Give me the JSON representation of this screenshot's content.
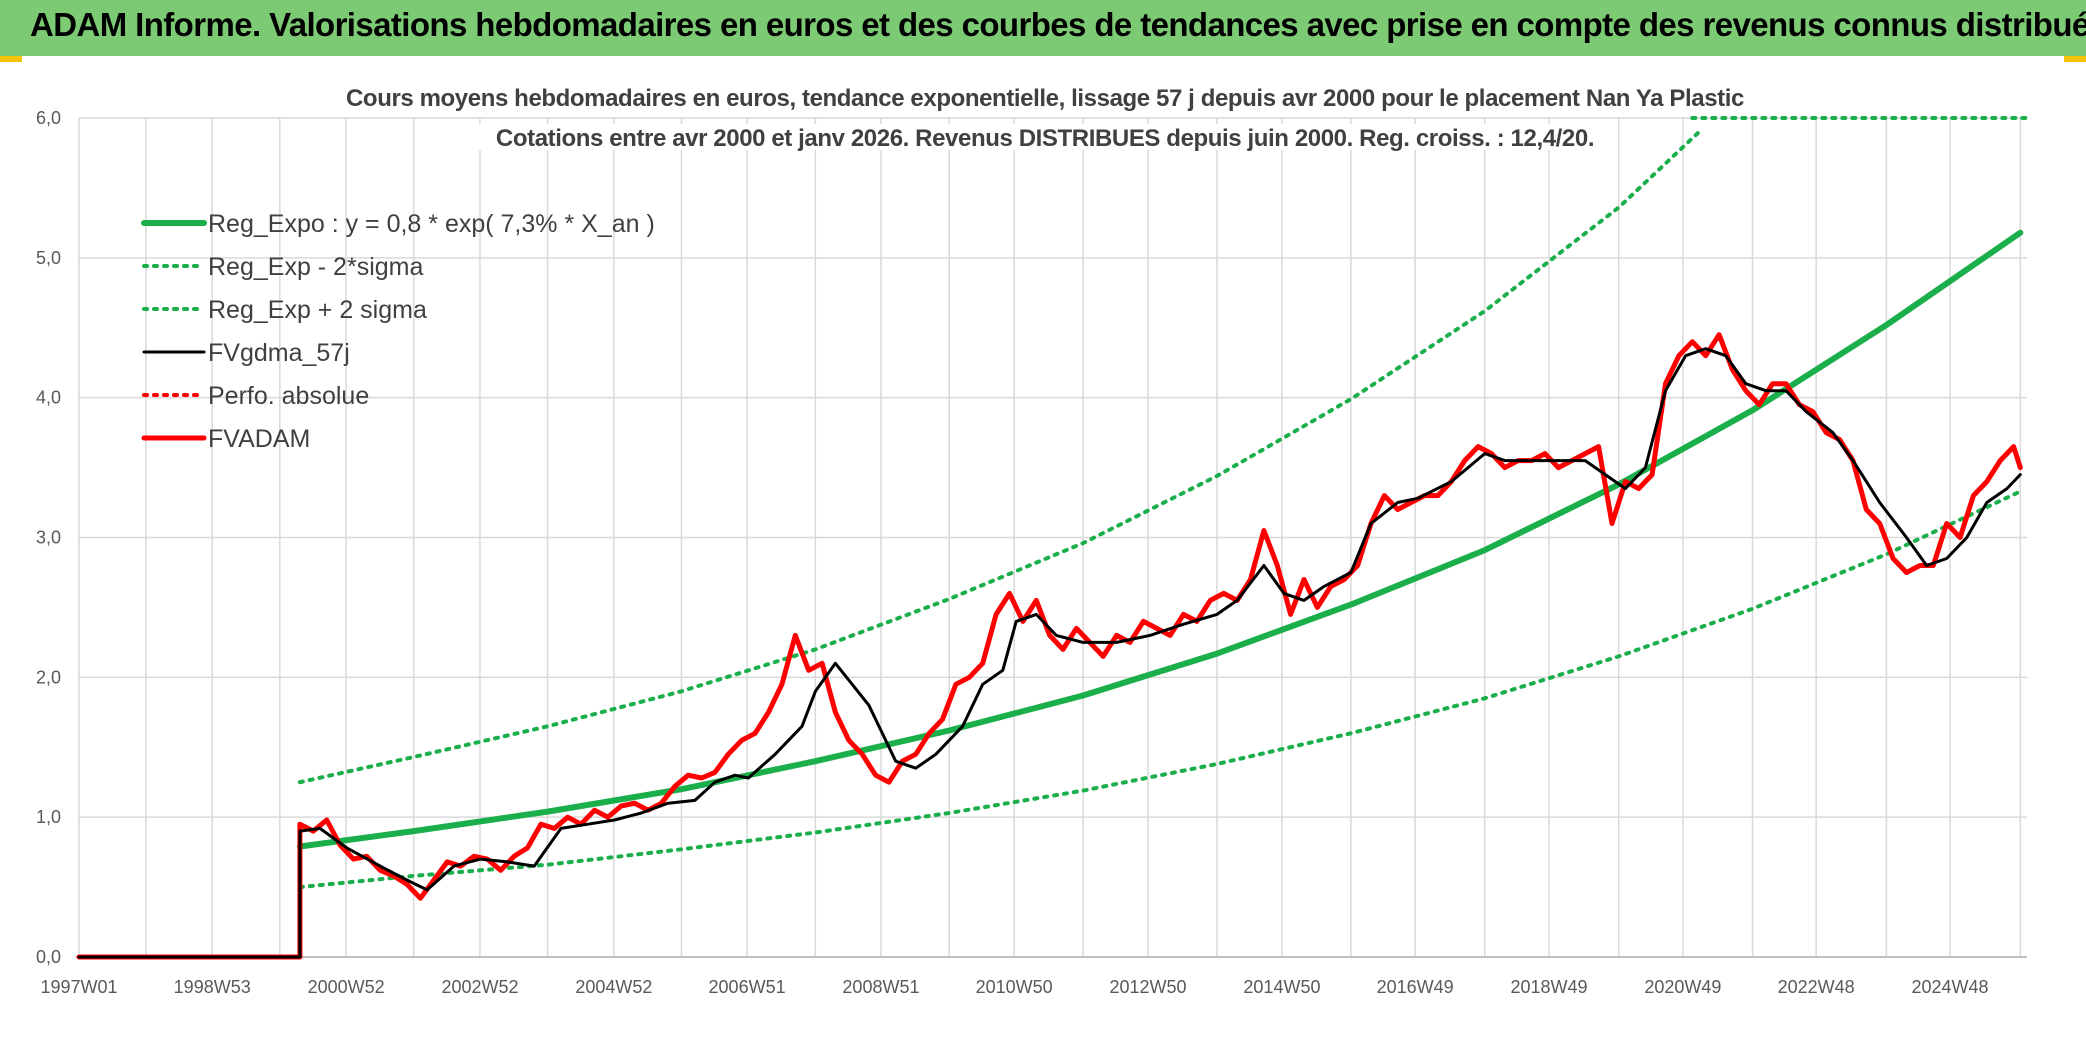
{
  "banner": {
    "title": "ADAM Informe. Valorisations hebdomadaires en euros et des courbes de tendances avec prise en compte des revenus connus distribués"
  },
  "colors": {
    "banner": "#7dca74",
    "regExpo": "#1aaf4b",
    "sigma": "#1aaf4b",
    "fvgdma": "#000000",
    "perfo": "#ff0000",
    "fvadam": "#ff0000",
    "grid": "#d9d9d9"
  },
  "chart_data": {
    "type": "line",
    "title_line1": "Cours moyens hebdomadaires en euros, tendance exponentielle, lissage 57 j depuis avr 2000 pour le placement Nan Ya Plastic",
    "title_line2": "Cotations entre avr 2000 et janv 2026. Revenus DISTRIBUES depuis juin 2000. Reg. croiss. : 12,4/20.",
    "xlabel": "",
    "ylabel": "",
    "xlim": [
      1997.0,
      2026.1
    ],
    "ylim": [
      0,
      6
    ],
    "y_ticks": [
      "0,0",
      "1,0",
      "2,0",
      "3,0",
      "4,0",
      "5,0",
      "6,0"
    ],
    "x_ticks": [
      {
        "x": 1997.0,
        "label": "1997W01"
      },
      {
        "x": 1998.99,
        "label": "1998W53"
      },
      {
        "x": 2000.99,
        "label": "2000W52"
      },
      {
        "x": 2002.99,
        "label": "2002W52"
      },
      {
        "x": 2004.99,
        "label": "2004W52"
      },
      {
        "x": 2006.98,
        "label": "2006W51"
      },
      {
        "x": 2008.98,
        "label": "2008W51"
      },
      {
        "x": 2010.97,
        "label": "2010W50"
      },
      {
        "x": 2012.97,
        "label": "2012W50"
      },
      {
        "x": 2014.97,
        "label": "2014W50"
      },
      {
        "x": 2016.96,
        "label": "2016W49"
      },
      {
        "x": 2018.96,
        "label": "2018W49"
      },
      {
        "x": 2020.96,
        "label": "2020W49"
      },
      {
        "x": 2022.95,
        "label": "2022W48"
      },
      {
        "x": 2024.95,
        "label": "2024W48"
      }
    ],
    "x_gridlines": [
      1997.0,
      1998.0,
      1998.99,
      2000.0,
      2000.99,
      2002.0,
      2002.99,
      2004.0,
      2004.99,
      2006.0,
      2006.98,
      2008.0,
      2008.98,
      2010.0,
      2010.97,
      2012.0,
      2012.97,
      2014.0,
      2014.97,
      2016.0,
      2016.96,
      2018.0,
      2018.96,
      2020.0,
      2020.96,
      2022.0,
      2022.95,
      2024.0,
      2024.95,
      2026.0
    ],
    "series": [
      {
        "name": "Reg_Expo : y = 0,8 * exp( 7,3% *  X_an )",
        "style": "solid-thick",
        "color": "#1aaf4b",
        "x": [
          2000.3,
          2002,
          2004,
          2006,
          2008,
          2010,
          2012,
          2014,
          2016,
          2018,
          2020,
          2022,
          2024,
          2026
        ],
        "y": [
          0.79,
          0.9,
          1.04,
          1.2,
          1.4,
          1.62,
          1.87,
          2.17,
          2.52,
          2.91,
          3.38,
          3.91,
          4.52,
          5.18
        ]
      },
      {
        "name": "Reg_Exp - 2*sigma",
        "style": "dotted",
        "color": "#1aaf4b",
        "x": [
          2000.3,
          2002,
          2004,
          2006,
          2008,
          2010,
          2012,
          2014,
          2016,
          2018,
          2020,
          2022,
          2024,
          2026
        ],
        "y": [
          0.5,
          0.58,
          0.66,
          0.77,
          0.89,
          1.03,
          1.19,
          1.38,
          1.6,
          1.85,
          2.15,
          2.49,
          2.88,
          3.33
        ]
      },
      {
        "name": "Reg_Exp + 2 sigma",
        "style": "dotted",
        "color": "#1aaf4b",
        "x": [
          2000.3,
          2002,
          2004,
          2006,
          2008,
          2010,
          2012,
          2014,
          2016,
          2018,
          2020,
          2021.2
        ],
        "y": [
          1.25,
          1.43,
          1.65,
          1.9,
          2.2,
          2.56,
          2.96,
          3.44,
          3.99,
          4.62,
          5.36,
          5.9
        ],
        "clip_line": {
          "x": [
            2021.1,
            2026.1
          ],
          "y": [
            6.0,
            6.0
          ]
        }
      },
      {
        "name": "FVgdma_57j",
        "style": "solid",
        "color": "#000000",
        "x": [
          1997.0,
          2000.3,
          2000.3,
          2000.6,
          2001.0,
          2001.5,
          2001.9,
          2002.2,
          2002.6,
          2003.0,
          2003.4,
          2003.8,
          2004.2,
          2004.6,
          2005.0,
          2005.4,
          2005.8,
          2006.2,
          2006.5,
          2006.8,
          2007.0,
          2007.4,
          2007.8,
          2008.0,
          2008.3,
          2008.8,
          2009.2,
          2009.5,
          2009.8,
          2010.2,
          2010.5,
          2010.8,
          2011.0,
          2011.3,
          2011.6,
          2012.0,
          2012.5,
          2013.0,
          2013.5,
          2014.0,
          2014.3,
          2014.7,
          2015.0,
          2015.3,
          2015.6,
          2016.0,
          2016.3,
          2016.7,
          2017.0,
          2017.5,
          2018.0,
          2018.3,
          2018.7,
          2019.0,
          2019.5,
          2019.8,
          2020.1,
          2020.4,
          2020.7,
          2021.0,
          2021.3,
          2021.6,
          2021.9,
          2022.2,
          2022.5,
          2022.8,
          2023.2,
          2023.5,
          2023.9,
          2024.3,
          2024.6,
          2024.9,
          2025.2,
          2025.5,
          2025.8,
          2026.0
        ],
        "y": [
          0.0,
          0.0,
          0.9,
          0.92,
          0.78,
          0.65,
          0.55,
          0.48,
          0.65,
          0.7,
          0.68,
          0.65,
          0.92,
          0.95,
          0.98,
          1.03,
          1.1,
          1.12,
          1.25,
          1.3,
          1.28,
          1.45,
          1.65,
          1.9,
          2.1,
          1.8,
          1.4,
          1.35,
          1.45,
          1.65,
          1.95,
          2.05,
          2.4,
          2.45,
          2.3,
          2.25,
          2.25,
          2.3,
          2.38,
          2.45,
          2.55,
          2.8,
          2.6,
          2.55,
          2.65,
          2.75,
          3.1,
          3.25,
          3.28,
          3.4,
          3.6,
          3.55,
          3.55,
          3.55,
          3.55,
          3.45,
          3.35,
          3.5,
          4.05,
          4.3,
          4.35,
          4.3,
          4.1,
          4.05,
          4.05,
          3.9,
          3.75,
          3.55,
          3.25,
          3.0,
          2.8,
          2.85,
          3.0,
          3.25,
          3.35,
          3.45
        ]
      },
      {
        "name": "Perfo. absolue",
        "style": "dotted",
        "color": "#ff0000",
        "x": [
          1997.0,
          2000.3
        ],
        "y": [
          0.0,
          0.0
        ]
      },
      {
        "name": "FVADAM",
        "style": "solid-thick",
        "color": "#ff0000",
        "x": [
          1997.0,
          2000.3,
          2000.3,
          2000.5,
          2000.7,
          2000.9,
          2001.1,
          2001.3,
          2001.5,
          2001.7,
          2001.9,
          2002.1,
          2002.3,
          2002.5,
          2002.7,
          2002.9,
          2003.1,
          2003.3,
          2003.5,
          2003.7,
          2003.9,
          2004.1,
          2004.3,
          2004.5,
          2004.7,
          2004.9,
          2005.1,
          2005.3,
          2005.5,
          2005.7,
          2005.9,
          2006.1,
          2006.3,
          2006.5,
          2006.7,
          2006.9,
          2007.1,
          2007.3,
          2007.5,
          2007.7,
          2007.9,
          2008.1,
          2008.3,
          2008.5,
          2008.7,
          2008.9,
          2009.1,
          2009.3,
          2009.5,
          2009.7,
          2009.9,
          2010.1,
          2010.3,
          2010.5,
          2010.7,
          2010.9,
          2011.1,
          2011.3,
          2011.5,
          2011.7,
          2011.9,
          2012.1,
          2012.3,
          2012.5,
          2012.7,
          2012.9,
          2013.1,
          2013.3,
          2013.5,
          2013.7,
          2013.9,
          2014.1,
          2014.3,
          2014.5,
          2014.7,
          2014.9,
          2015.1,
          2015.3,
          2015.5,
          2015.7,
          2015.9,
          2016.1,
          2016.3,
          2016.5,
          2016.7,
          2016.9,
          2017.1,
          2017.3,
          2017.5,
          2017.7,
          2017.9,
          2018.1,
          2018.3,
          2018.5,
          2018.7,
          2018.9,
          2019.1,
          2019.3,
          2019.5,
          2019.7,
          2019.9,
          2020.1,
          2020.3,
          2020.5,
          2020.7,
          2020.9,
          2021.1,
          2021.3,
          2021.5,
          2021.7,
          2021.9,
          2022.1,
          2022.3,
          2022.5,
          2022.7,
          2022.9,
          2023.1,
          2023.3,
          2023.5,
          2023.7,
          2023.9,
          2024.1,
          2024.3,
          2024.5,
          2024.7,
          2024.9,
          2025.1,
          2025.3,
          2025.5,
          2025.7,
          2025.9,
          2026.0
        ],
        "y": [
          0.0,
          0.0,
          0.95,
          0.9,
          0.98,
          0.8,
          0.7,
          0.72,
          0.62,
          0.58,
          0.52,
          0.42,
          0.55,
          0.68,
          0.65,
          0.72,
          0.7,
          0.62,
          0.72,
          0.78,
          0.95,
          0.92,
          1.0,
          0.95,
          1.05,
          1.0,
          1.08,
          1.1,
          1.05,
          1.1,
          1.22,
          1.3,
          1.28,
          1.32,
          1.45,
          1.55,
          1.6,
          1.75,
          1.95,
          2.3,
          2.05,
          2.1,
          1.75,
          1.55,
          1.45,
          1.3,
          1.25,
          1.4,
          1.45,
          1.6,
          1.7,
          1.95,
          2.0,
          2.1,
          2.45,
          2.6,
          2.4,
          2.55,
          2.3,
          2.2,
          2.35,
          2.25,
          2.15,
          2.3,
          2.25,
          2.4,
          2.35,
          2.3,
          2.45,
          2.4,
          2.55,
          2.6,
          2.55,
          2.7,
          3.05,
          2.8,
          2.45,
          2.7,
          2.5,
          2.65,
          2.7,
          2.8,
          3.1,
          3.3,
          3.2,
          3.25,
          3.3,
          3.3,
          3.4,
          3.55,
          3.65,
          3.6,
          3.5,
          3.55,
          3.55,
          3.6,
          3.5,
          3.55,
          3.6,
          3.65,
          3.1,
          3.4,
          3.35,
          3.45,
          4.1,
          4.3,
          4.4,
          4.3,
          4.45,
          4.2,
          4.05,
          3.95,
          4.1,
          4.1,
          3.95,
          3.9,
          3.75,
          3.7,
          3.55,
          3.2,
          3.1,
          2.85,
          2.75,
          2.8,
          2.8,
          3.1,
          3.0,
          3.3,
          3.4,
          3.55,
          3.65,
          3.5
        ]
      }
    ]
  }
}
